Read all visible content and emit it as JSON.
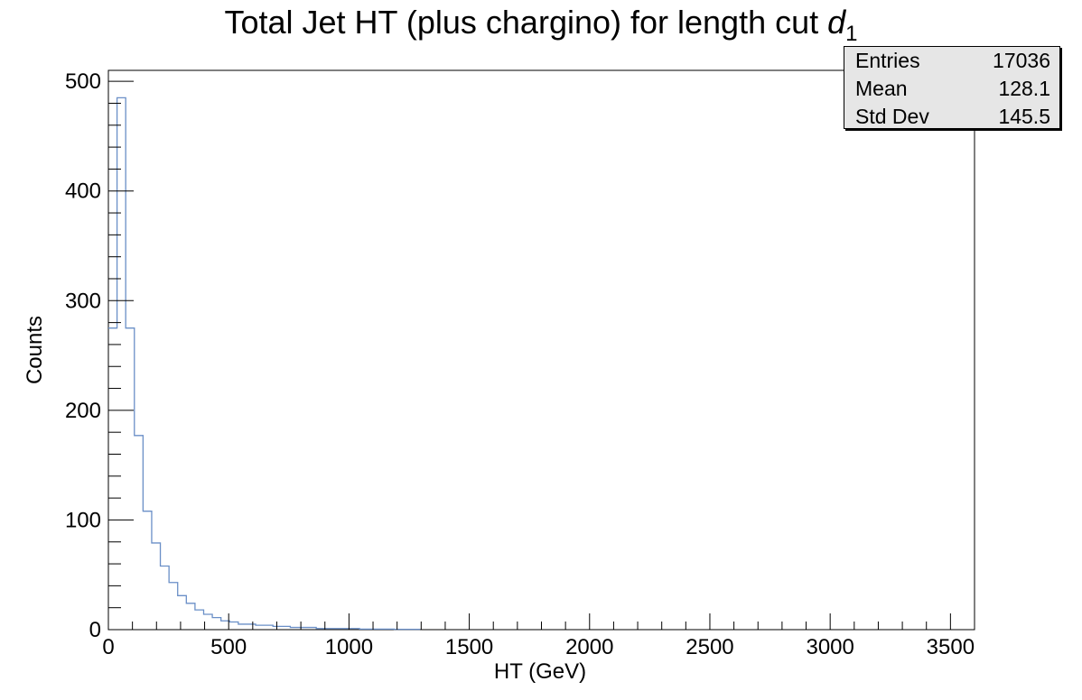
{
  "title": {
    "text": "Total Jet HT (plus chargino) for length cut ",
    "symbol": "d",
    "subscript": "1"
  },
  "stats_box": {
    "rows": [
      {
        "key": "Entries",
        "value": "17036"
      },
      {
        "key": "Mean",
        "value": "128.1"
      },
      {
        "key": "Std Dev",
        "value": "145.5"
      }
    ]
  },
  "colors": {
    "line": "#6a8fc7",
    "axis": "#000000",
    "stats_bg": "#e6e6e6"
  },
  "chart_data": {
    "type": "bar",
    "subtype": "histogram-step",
    "xlabel": "HT (GeV)",
    "ylabel": "Counts",
    "xlim": [
      0,
      3600
    ],
    "ylim": [
      0,
      510
    ],
    "xticks": [
      0,
      500,
      1000,
      1500,
      2000,
      2500,
      3000,
      3500
    ],
    "xtick_labels": [
      "0",
      "500",
      "1000",
      "1500",
      "2000",
      "2500",
      "3000",
      "3500"
    ],
    "yticks": [
      0,
      100,
      200,
      300,
      400,
      500
    ],
    "ytick_labels": [
      "0",
      "100",
      "200",
      "300",
      "400",
      "500"
    ],
    "bin_width": 36,
    "values": [
      275,
      485,
      275,
      177,
      108,
      79,
      58,
      43,
      31,
      24,
      18,
      14,
      11,
      8,
      7,
      5,
      5,
      4,
      4,
      3,
      3,
      2,
      2,
      2,
      1,
      1,
      1,
      1,
      1,
      0.5,
      0.5,
      0.5,
      0.5,
      0.3,
      0.3,
      0.3
    ],
    "grid": false,
    "legend": "none"
  }
}
